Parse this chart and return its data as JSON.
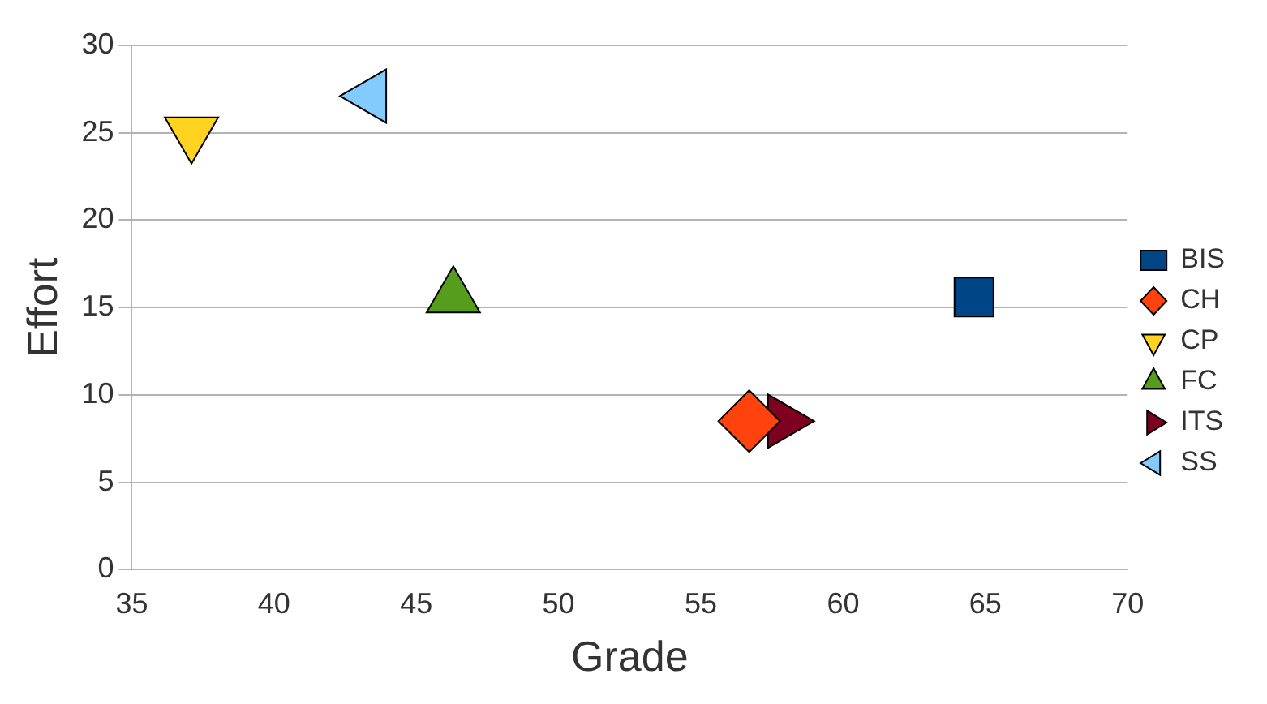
{
  "chart_data": {
    "type": "scatter",
    "xlabel": "Grade",
    "ylabel": "Effort",
    "xlim": [
      35,
      70
    ],
    "xticks": [
      35,
      40,
      45,
      50,
      55,
      60,
      65,
      70
    ],
    "ylim": [
      0,
      30
    ],
    "yticks": [
      0,
      5,
      10,
      15,
      20,
      25,
      30
    ],
    "grid": "y",
    "legend": "right",
    "series": [
      {
        "name": "BIS",
        "color": "#004586",
        "marker": "square",
        "x": [
          64.6
        ],
        "values": [
          15.6
        ]
      },
      {
        "name": "CH",
        "color": "#ff420e",
        "marker": "diamond",
        "x": [
          56.7
        ],
        "values": [
          8.5
        ]
      },
      {
        "name": "CP",
        "color": "#ffd320",
        "marker": "triangle-down",
        "x": [
          37.1
        ],
        "values": [
          25
        ]
      },
      {
        "name": "FC",
        "color": "#579d1c",
        "marker": "triangle",
        "x": [
          46.3
        ],
        "values": [
          15.6
        ]
      },
      {
        "name": "ITS",
        "color": "#7e0021",
        "marker": "triangle-right",
        "x": [
          57.9
        ],
        "values": [
          8.5
        ]
      },
      {
        "name": "SS",
        "color": "#83caff",
        "marker": "triangle-left",
        "x": [
          43.4
        ],
        "values": [
          27.1
        ]
      }
    ]
  }
}
